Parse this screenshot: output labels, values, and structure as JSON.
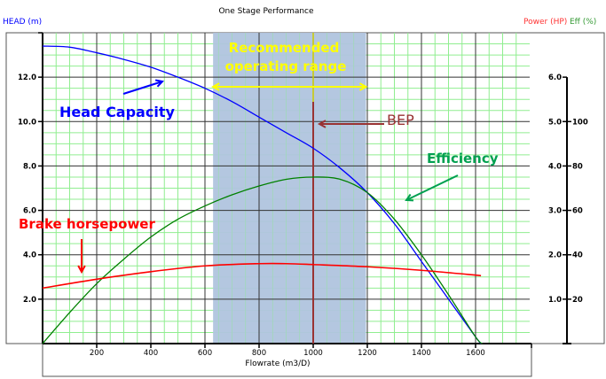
{
  "chart_data": {
    "type": "line",
    "title": "One Stage Performance",
    "xlabel": "Flowrate (m3/D)",
    "ylabel_left": "HEAD (m)",
    "ylabel_right_power": "Power (HP)",
    "ylabel_right_eff": "Eff (%)",
    "xlim": [
      0,
      1800
    ],
    "ylim_left": [
      0,
      14
    ],
    "ylim_power": [
      0,
      7
    ],
    "ylim_eff": [
      0,
      140
    ],
    "x_ticks": [
      "200",
      "400",
      "600",
      "800",
      "1000",
      "1200",
      "1400",
      "1600"
    ],
    "y_left_ticks": [
      "2.0",
      "4.0",
      "6.0",
      "8.0",
      "10.0",
      "12.0"
    ],
    "y_power_ticks": [
      "1.0",
      "2.0",
      "3.0",
      "4.0",
      "5.0",
      "6.0"
    ],
    "y_eff_ticks": [
      "20",
      "40",
      "60",
      "80",
      "100"
    ],
    "grid": true,
    "colors": {
      "head": "#0000ff",
      "power": "#ff0000",
      "efficiency": "#008000",
      "range": "#b0c4de",
      "bep": "#993333",
      "range_arrow": "#ffff00",
      "grid_minor": "#90ee90",
      "grid_major": "#000000"
    },
    "series": [
      {
        "key": "head",
        "axis": "left",
        "x": [
          0,
          100,
          200,
          300,
          400,
          500,
          600,
          700,
          800,
          900,
          1000,
          1100,
          1200,
          1300,
          1400,
          1500,
          1600,
          1620
        ],
        "y": [
          13.4,
          13.35,
          13.1,
          12.8,
          12.45,
          12.0,
          11.5,
          10.9,
          10.2,
          9.5,
          8.8,
          7.9,
          6.8,
          5.4,
          3.7,
          2.0,
          0.3,
          0
        ]
      },
      {
        "key": "efficiency",
        "axis": "eff",
        "x": [
          0,
          100,
          200,
          300,
          400,
          500,
          600,
          700,
          800,
          900,
          1000,
          1100,
          1200,
          1300,
          1400,
          1500,
          1600,
          1625
        ],
        "y": [
          0,
          14,
          27,
          38,
          48,
          56,
          62,
          67,
          71,
          74,
          75,
          74,
          68,
          56,
          40,
          22,
          3,
          0
        ]
      },
      {
        "key": "power",
        "axis": "power",
        "x": [
          0,
          200,
          400,
          600,
          800,
          900,
          1000,
          1200,
          1400,
          1620
        ],
        "y": [
          1.25,
          1.45,
          1.62,
          1.75,
          1.8,
          1.8,
          1.78,
          1.73,
          1.65,
          1.53
        ]
      }
    ],
    "recommended_range": [
      630,
      1195
    ],
    "bep_flow": 1000,
    "annotations": {
      "recommended": [
        "Recommended",
        "operating range"
      ],
      "bep": "BEP",
      "head_capacity": "Head Capacity",
      "efficiency": "Efficiency",
      "brake_hp": "Brake horsepower"
    }
  }
}
